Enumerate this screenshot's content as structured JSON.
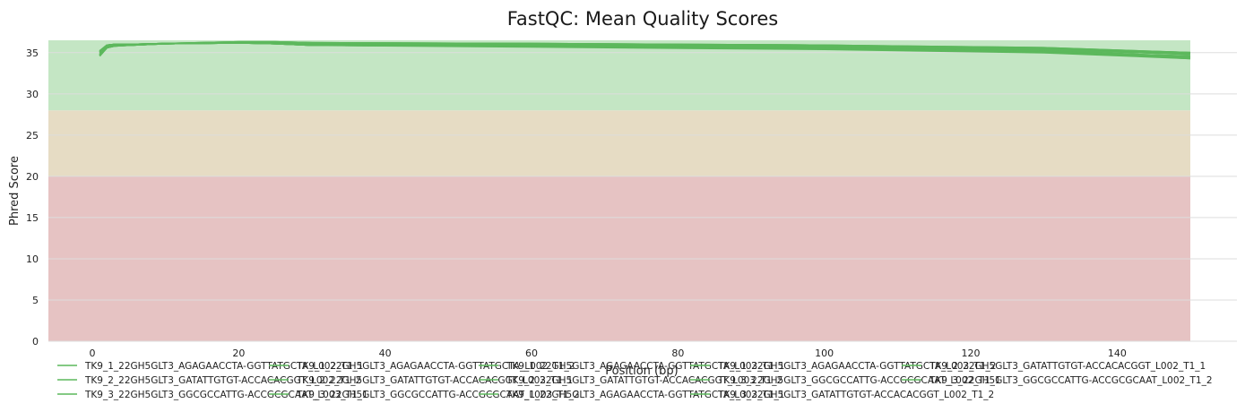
{
  "chart_data": {
    "type": "line",
    "title": "FastQC: Mean Quality Scores",
    "xlabel": "Position (bp)",
    "ylabel": "Phred Score",
    "xlim": [
      -6,
      150
    ],
    "ylim": [
      0,
      36.5
    ],
    "xticks": [
      0,
      20,
      40,
      60,
      80,
      100,
      120,
      140
    ],
    "yticks": [
      0,
      5,
      10,
      15,
      20,
      25,
      30,
      35
    ],
    "grid": true,
    "legend_position": "bottom",
    "zones": [
      {
        "from": 0,
        "to": 20,
        "color": "#e6c3c3"
      },
      {
        "from": 20,
        "to": 28,
        "color": "#e6dcc4"
      },
      {
        "from": 28,
        "to": 36.5,
        "color": "#c4e6c4"
      }
    ],
    "line_color": "#5cb85c",
    "series": [
      {
        "name": "TK9_1_22GH5GLT3_AGAGAACCTA-GGTTATGCTA_L002_T1_1",
        "x": [
          1,
          2,
          3,
          5,
          10,
          20,
          25,
          30,
          60,
          100,
          130,
          150
        ],
        "y": [
          35.0,
          35.9,
          36.0,
          36.0,
          36.1,
          36.2,
          36.2,
          36.1,
          36.0,
          35.7,
          35.3,
          34.5
        ]
      },
      {
        "name": "TK9_1_22GH5GLT3_AGAGAACCTA-GGTTATGCTA_L002_T1_2",
        "x": [
          1,
          2,
          3,
          5,
          10,
          20,
          25,
          30,
          60,
          100,
          130,
          150
        ],
        "y": [
          34.6,
          35.6,
          35.8,
          35.9,
          36.1,
          36.2,
          36.1,
          36.0,
          35.9,
          35.6,
          35.2,
          34.3
        ]
      },
      {
        "name": "TK9_1_22GH5GLT3_AGAGAACCTA-GGTTATGCTA_L003_T1_1",
        "x": [
          1,
          2,
          3,
          5,
          10,
          20,
          25,
          30,
          60,
          100,
          130,
          150
        ],
        "y": [
          35.2,
          35.9,
          36.0,
          36.0,
          36.1,
          36.3,
          36.3,
          36.2,
          36.1,
          35.9,
          35.5,
          35.0
        ]
      },
      {
        "name": "TK9_1_22GH5GLT3_AGAGAACCTA-GGTTATGCTA_L003_T1_2",
        "x": [
          1,
          2,
          3,
          5,
          10,
          20,
          25,
          30,
          60,
          100,
          130,
          150
        ],
        "y": [
          34.8,
          35.7,
          35.9,
          35.9,
          36.1,
          36.2,
          36.1,
          35.9,
          35.8,
          35.5,
          35.1,
          34.5
        ]
      },
      {
        "name": "TK9_2_22GH5GLT3_GATATTGTGT-ACCACACGGT_L002_T1_1",
        "x": [
          1,
          2,
          3,
          5,
          10,
          20,
          25,
          30,
          60,
          100,
          130,
          150
        ],
        "y": [
          35.1,
          35.9,
          36.0,
          36.0,
          36.1,
          36.2,
          36.2,
          36.1,
          36.0,
          35.8,
          35.4,
          34.8
        ]
      },
      {
        "name": "TK9_2_22GH5GLT3_GATATTGTGT-ACCACACGGT_L002_T1_2",
        "x": [
          1,
          2,
          3,
          5,
          10,
          20,
          25,
          30,
          60,
          100,
          130,
          150
        ],
        "y": [
          34.7,
          35.6,
          35.8,
          35.9,
          36.1,
          36.2,
          36.1,
          35.9,
          35.8,
          35.5,
          35.1,
          34.4
        ]
      },
      {
        "name": "TK9_2_22GH5GLT3_GATATTGTGT-ACCACACGGT_L003_T1_1",
        "x": [
          1,
          2,
          3,
          5,
          10,
          20,
          25,
          30,
          60,
          100,
          130,
          150
        ],
        "y": [
          35.2,
          35.9,
          36.0,
          36.0,
          36.1,
          36.3,
          36.3,
          36.2,
          36.1,
          35.9,
          35.6,
          35.0
        ]
      },
      {
        "name": "TK9_2_22GH5GLT3_GATATTGTGT-ACCACACGGT_L003_T1_2",
        "x": [
          1,
          2,
          3,
          5,
          10,
          20,
          25,
          30,
          60,
          100,
          130,
          150
        ],
        "y": [
          34.8,
          35.7,
          35.9,
          35.9,
          36.1,
          36.2,
          36.1,
          35.9,
          35.8,
          35.5,
          35.1,
          34.6
        ]
      },
      {
        "name": "TK9_3_22GH5GLT3_GGCGCCATTG-ACCGCGCAAT_L002_T1_1",
        "x": [
          1,
          2,
          3,
          5,
          10,
          20,
          25,
          30,
          60,
          100,
          130,
          150
        ],
        "y": [
          35.0,
          35.9,
          36.0,
          36.0,
          36.1,
          36.2,
          36.2,
          36.1,
          36.0,
          35.7,
          35.4,
          34.9
        ]
      },
      {
        "name": "TK9_3_22GH5GLT3_GGCGCCATTG-ACCGCGCAAT_L002_T1_2",
        "x": [
          1,
          2,
          3,
          5,
          10,
          20,
          25,
          30,
          60,
          100,
          130,
          150
        ],
        "y": [
          34.6,
          35.6,
          35.8,
          35.9,
          36.1,
          36.2,
          36.1,
          35.9,
          35.7,
          35.4,
          35.0,
          34.3
        ]
      },
      {
        "name": "TK9_3_22GH5GLT3_GGCGCCATTG-ACCGCGCAAT_L003_T1_1",
        "x": [
          1,
          2,
          3,
          5,
          10,
          20,
          25,
          30,
          60,
          100,
          130,
          150
        ],
        "y": [
          35.2,
          35.9,
          36.0,
          36.0,
          36.1,
          36.3,
          36.3,
          36.2,
          36.1,
          35.9,
          35.6,
          35.0
        ]
      },
      {
        "name": "TK9_3_22GH5GLT3_GGCGCCATTG-ACCGCGCAAT_L003_T1_2",
        "x": [
          1,
          2,
          3,
          5,
          10,
          20,
          25,
          30,
          60,
          100,
          130,
          150
        ],
        "y": [
          34.8,
          35.7,
          35.9,
          35.9,
          36.1,
          36.2,
          36.1,
          35.9,
          35.8,
          35.5,
          35.1,
          34.5
        ]
      },
      {
        "name": "TK9_1_22GH5GLT3_AGAGAACCTA-GGTTATGCTA_L003_T1_1",
        "x": [
          1,
          2,
          3,
          5,
          10,
          20,
          25,
          30,
          60,
          100,
          130,
          150
        ],
        "y": [
          35.1,
          35.9,
          36.0,
          36.0,
          36.1,
          36.2,
          36.2,
          36.1,
          36.0,
          35.8,
          35.4,
          34.8
        ]
      },
      {
        "name": "TK9_3_22GH5GLT3_GATATTGTGT-ACCACACGGT_L002_T1_2",
        "x": [
          1,
          2,
          3,
          5,
          10,
          20,
          25,
          30,
          60,
          100,
          130,
          150
        ],
        "y": [
          34.7,
          35.6,
          35.8,
          35.9,
          36.1,
          36.2,
          36.1,
          35.9,
          35.8,
          35.5,
          35.1,
          34.4
        ]
      }
    ]
  }
}
